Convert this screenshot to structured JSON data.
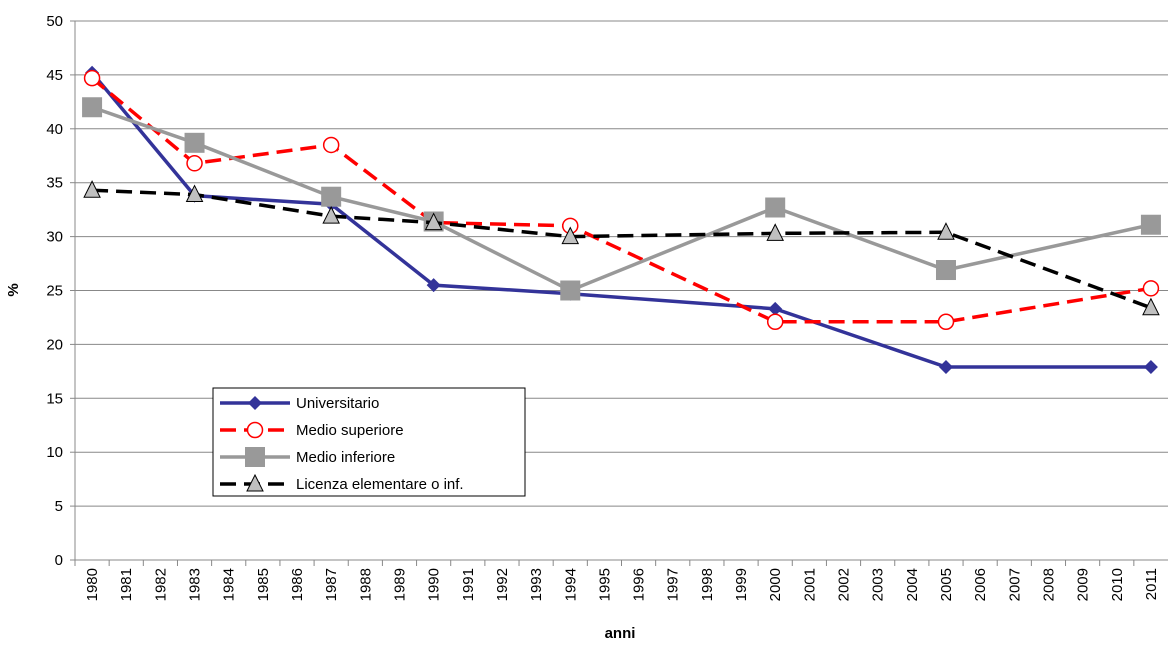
{
  "chart_data": {
    "type": "line",
    "x": [
      1980,
      1983,
      1987,
      1990,
      1994,
      2000,
      2005,
      2011
    ],
    "series": [
      {
        "name": "Universitario",
        "color": "#333399",
        "marker": "diamond",
        "dash": false,
        "values": [
          45.2,
          33.8,
          33.0,
          25.5,
          24.7,
          23.3,
          17.9,
          17.9
        ]
      },
      {
        "name": "Medio superiore",
        "color": "#ff0000",
        "marker": "circle",
        "dash": true,
        "values": [
          44.7,
          36.8,
          38.5,
          31.3,
          31.0,
          22.1,
          22.1,
          25.2
        ]
      },
      {
        "name": "Medio inferiore",
        "color": "#999999",
        "marker": "square",
        "dash": false,
        "values": [
          42.0,
          38.7,
          33.7,
          31.4,
          25.0,
          32.7,
          26.9,
          31.1
        ]
      },
      {
        "name": "Licenza elementare o inf.",
        "color": "#000000",
        "marker": "triangle",
        "dash": true,
        "values": [
          34.3,
          33.9,
          31.9,
          31.3,
          30.0,
          30.3,
          30.4,
          23.4
        ]
      }
    ],
    "xlabel": "anni",
    "ylabel": "%",
    "xlim": [
      1979.5,
      2011.5
    ],
    "xticks": [
      1980,
      1981,
      1982,
      1983,
      1984,
      1985,
      1986,
      1987,
      1988,
      1989,
      1990,
      1991,
      1992,
      1993,
      1994,
      1995,
      1996,
      1997,
      1998,
      1999,
      2000,
      2001,
      2002,
      2003,
      2004,
      2005,
      2006,
      2007,
      2008,
      2009,
      2010,
      2011
    ],
    "ylim": [
      0,
      50
    ],
    "yticks": [
      0,
      5,
      10,
      15,
      20,
      25,
      30,
      35,
      40,
      45,
      50
    ],
    "grid": true
  }
}
